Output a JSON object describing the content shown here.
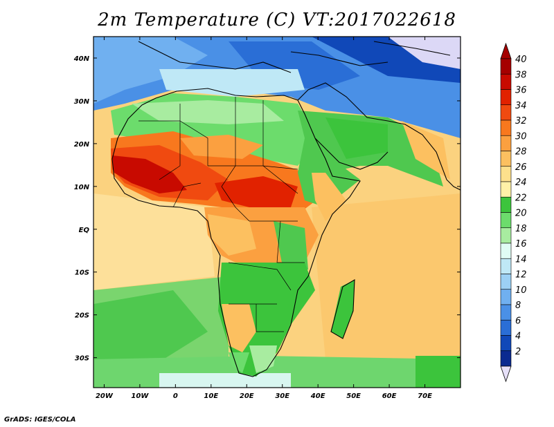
{
  "title": "2m Temperature (C) VT:2017022618",
  "credit": "GrADS: IGES/COLA",
  "lat_labels": [
    "40N",
    "30N",
    "20N",
    "10N",
    "EQ",
    "10S",
    "20S",
    "30S"
  ],
  "lat_values": [
    40,
    30,
    20,
    10,
    0,
    -10,
    -20,
    -30
  ],
  "lon_labels": [
    "20W",
    "10W",
    "0",
    "10E",
    "20E",
    "30E",
    "40E",
    "50E",
    "60E",
    "70E"
  ],
  "lon_values": [
    -20,
    -10,
    0,
    10,
    20,
    30,
    40,
    50,
    60,
    70
  ],
  "extent": {
    "lon_min": -23,
    "lon_max": 80,
    "lat_min": -37,
    "lat_max": 45
  },
  "colorbar": {
    "labels": [
      "40",
      "38",
      "36",
      "34",
      "32",
      "30",
      "28",
      "26",
      "24",
      "22",
      "20",
      "18",
      "16",
      "14",
      "12",
      "10",
      "8",
      "6",
      "4",
      "2"
    ],
    "colors": [
      "#a50000",
      "#c80a00",
      "#e12200",
      "#f04a10",
      "#f8781e",
      "#fbA040",
      "#fcc060",
      "#fde08c",
      "#fff1a8",
      "#3cc43c",
      "#6cdc6c",
      "#a8eca0",
      "#e0fcf4",
      "#bfe8f6",
      "#9cd0f4",
      "#70b0f0",
      "#4a90e6",
      "#2a6ed6",
      "#1048b8",
      "#0a2a90"
    ],
    "top_color": "#a50000",
    "bottom_color": "#e6e0f8"
  },
  "colors": {
    "sea_base": "#fce192",
    "land": "#4fc84f",
    "desert_hot": "#f6a23a",
    "north_cool": "#6aa8ec"
  }
}
